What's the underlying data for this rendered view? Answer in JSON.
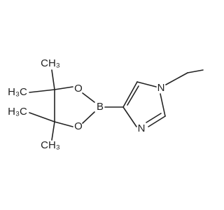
{
  "atoms": {
    "methyl_top": "CH₃",
    "methyl_left_top": "H₃C",
    "methyl_left_bottom": "H₃C",
    "methyl_bottom": "CH₃",
    "oxygen_top": "O",
    "oxygen_bottom": "O",
    "boron": "B",
    "nitrogen_methyl": "N",
    "nitrogen_ring": "N"
  }
}
